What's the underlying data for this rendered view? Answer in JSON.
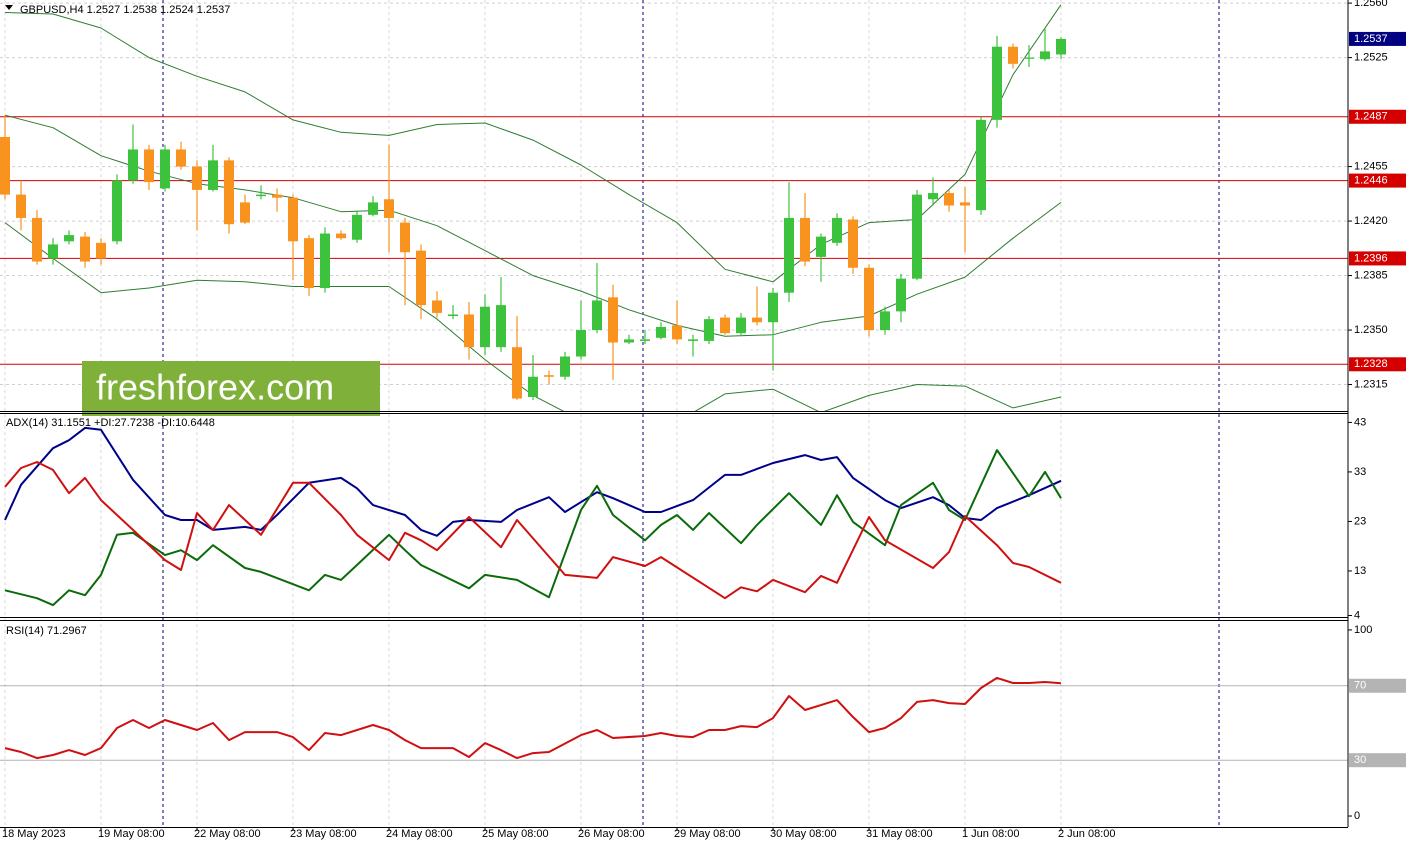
{
  "watermark": "freshforex.com",
  "chart_data": [
    {
      "type": "candlestick",
      "title": "GBPUSD,H4  1.2527 1.2538 1.2524 1.2537",
      "categories": [
        "18 May 2023",
        null,
        null,
        null,
        null,
        null,
        "19 May 08:00",
        null,
        null,
        null,
        null,
        null,
        "22 May 08:00",
        null,
        null,
        null,
        null,
        null,
        "23 May 08:00",
        null,
        null,
        null,
        null,
        null,
        "24 May 08:00",
        null,
        null,
        null,
        null,
        null,
        "25 May 08:00",
        null,
        null,
        null,
        null,
        null,
        "26 May 08:00",
        null,
        null,
        null,
        null,
        null,
        "29 May 08:00",
        null,
        null,
        null,
        null,
        null,
        "30 May 08:00",
        null,
        null,
        null,
        null,
        null,
        "31 May 08:00",
        null,
        null,
        null,
        null,
        null,
        "1 Jun 08:00",
        null,
        null,
        null,
        null,
        null,
        "2 Jun 08:00"
      ],
      "open": [
        1.2474,
        1.2437,
        1.2422,
        1.2396,
        1.2407,
        1.241,
        1.2406,
        1.2407,
        1.2446,
        1.2466,
        1.2441,
        1.2466,
        1.2455,
        1.244,
        1.2459,
        1.2432,
        1.2436,
        1.2437,
        1.2435,
        1.2409,
        1.2377,
        1.2412,
        1.2408,
        1.2424,
        1.2434,
        1.2419,
        1.2401,
        1.2369,
        1.2359,
        1.236,
        1.2339,
        1.2339,
        1.2339,
        1.2307,
        1.2321,
        1.232,
        1.2333,
        1.235,
        1.2371,
        1.2342,
        1.2343,
        1.2345,
        1.2353,
        1.2343,
        1.2343,
        1.2358,
        1.2348,
        1.2358,
        1.2355,
        1.2374,
        1.2422,
        1.2397,
        1.2406,
        1.2421,
        1.239,
        1.235,
        1.2362,
        1.2383,
        1.2434,
        1.2438,
        1.2432,
        1.2427,
        1.2485,
        1.2532,
        1.2525,
        1.2524,
        1.2527
      ],
      "high": [
        1.2488,
        1.2446,
        1.2427,
        1.2409,
        1.2414,
        1.2413,
        1.2409,
        1.245,
        1.2482,
        1.2469,
        1.2469,
        1.2471,
        1.2459,
        1.2469,
        1.2461,
        1.2437,
        1.2443,
        1.2441,
        1.2437,
        1.2411,
        1.2416,
        1.2414,
        1.2426,
        1.2436,
        1.2469,
        1.2422,
        1.2405,
        1.2375,
        1.2366,
        1.2368,
        1.2373,
        1.2384,
        1.2359,
        1.2334,
        1.2324,
        1.2336,
        1.2369,
        1.2393,
        1.2379,
        1.2347,
        1.235,
        1.2355,
        1.2369,
        1.2347,
        1.2359,
        1.236,
        1.2361,
        1.2378,
        1.2377,
        1.2445,
        1.2438,
        1.2412,
        1.2425,
        1.2423,
        1.2392,
        1.2365,
        1.2386,
        1.244,
        1.2448,
        1.244,
        1.2442,
        1.2487,
        1.2539,
        1.2534,
        1.2533,
        1.2544,
        1.2538
      ],
      "low": [
        1.2434,
        1.2414,
        1.2392,
        1.2392,
        1.2405,
        1.239,
        1.2392,
        1.2405,
        1.2444,
        1.244,
        1.2439,
        1.2453,
        1.2414,
        1.2439,
        1.2412,
        1.2418,
        1.2434,
        1.2426,
        1.2382,
        1.2372,
        1.2374,
        1.2408,
        1.2406,
        1.2423,
        1.24,
        1.2366,
        1.2357,
        1.2358,
        1.2357,
        1.2331,
        1.2334,
        1.2336,
        1.2305,
        1.2305,
        1.2315,
        1.2318,
        1.2331,
        1.2348,
        1.2318,
        1.2341,
        1.2341,
        1.2344,
        1.2341,
        1.2333,
        1.2341,
        1.2347,
        1.2346,
        1.2353,
        1.2324,
        1.2368,
        1.2391,
        1.2381,
        1.2404,
        1.2386,
        1.2346,
        1.2347,
        1.2355,
        1.2382,
        1.243,
        1.2426,
        1.24,
        1.2424,
        1.248,
        1.2518,
        1.2519,
        1.2523,
        1.2524
      ],
      "close": [
        1.2437,
        1.2422,
        1.2394,
        1.2405,
        1.2411,
        1.2394,
        1.2396,
        1.2446,
        1.2466,
        1.2445,
        1.2466,
        1.2455,
        1.244,
        1.2459,
        1.2418,
        1.2419,
        1.2437,
        1.2435,
        1.2407,
        1.2377,
        1.2412,
        1.2409,
        1.2424,
        1.2432,
        1.2422,
        1.24,
        1.2366,
        1.2361,
        1.236,
        1.2339,
        1.2365,
        1.2366,
        1.2306,
        1.232,
        1.232,
        1.2333,
        1.235,
        1.2369,
        1.2342,
        1.2344,
        1.2344,
        1.2352,
        1.2344,
        1.2344,
        1.2357,
        1.2348,
        1.2358,
        1.2355,
        1.2374,
        1.2422,
        1.2394,
        1.241,
        1.2422,
        1.239,
        1.235,
        1.2362,
        1.2383,
        1.2437,
        1.2438,
        1.243,
        1.243,
        1.2485,
        1.2532,
        1.2521,
        1.2525,
        1.2529,
        1.2537
      ],
      "up_color": "#3cc23c",
      "down_color": "#f7931e",
      "series": [
        {
          "color": "#2e7d32",
          "x": [
            0,
            3,
            6,
            9,
            12,
            15,
            18,
            21,
            24,
            27,
            30,
            33,
            36,
            39,
            42,
            45,
            48,
            51,
            54,
            57,
            60,
            63,
            66
          ],
          "values": [
            1.2554,
            1.2553,
            1.2544,
            1.2525,
            1.2513,
            1.2503,
            1.2485,
            1.2477,
            1.2475,
            1.2482,
            1.2483,
            1.2472,
            1.2456,
            1.2437,
            1.2419,
            1.2389,
            1.2381,
            1.2405,
            1.2419,
            1.2421,
            1.245,
            1.2514,
            1.2559
          ]
        },
        {
          "color": "#2e7d32",
          "x": [
            0,
            3,
            6,
            9,
            12,
            15,
            18,
            21,
            24,
            27,
            30,
            33,
            36,
            39,
            42,
            45,
            48,
            51,
            54,
            57,
            60,
            63,
            66
          ],
          "values": [
            1.2488,
            1.248,
            1.2462,
            1.2452,
            1.2444,
            1.244,
            1.2435,
            1.2426,
            1.2427,
            1.2417,
            1.2401,
            1.2385,
            1.2375,
            1.2363,
            1.2353,
            1.2346,
            1.2347,
            1.2355,
            1.2359,
            1.2373,
            1.2384,
            1.2409,
            1.2432
          ]
        },
        {
          "color": "#2e7d32",
          "x": [
            0,
            3,
            6,
            9,
            12,
            15,
            18,
            21,
            24,
            27,
            30,
            33,
            36,
            39,
            42,
            45,
            48,
            51,
            54,
            57,
            60,
            63,
            66
          ],
          "values": [
            1.2419,
            1.2396,
            1.2374,
            1.2377,
            1.2382,
            1.2381,
            1.2378,
            1.2378,
            1.2378,
            1.2357,
            1.2331,
            1.2308,
            1.2292,
            1.2285,
            1.2291,
            1.2309,
            1.2312,
            1.2297,
            1.2308,
            1.2315,
            1.2314,
            1.23,
            1.2307
          ]
        }
      ],
      "levels": [
        1.2487,
        1.2446,
        1.2396,
        1.2328
      ],
      "level_color": "#d40000",
      "last_price": 1.2537,
      "last_price_color": "#000080",
      "ylim": [
        1.2298,
        1.2562
      ],
      "yticks": [
        {
          "value": 1.256,
          "label": "1.2560"
        },
        1.2525,
        1.2455,
        {
          "value": 1.242,
          "label": "1.2420"
        },
        1.2385,
        {
          "value": 1.235,
          "label": "1.2350"
        },
        1.2315
      ],
      "grid": true
    },
    {
      "type": "line",
      "title": "ADX(14) 31.1551 +DI:27.7238 -DI:10.6448",
      "series": [
        {
          "color": "#00008b",
          "x": [
            0,
            1,
            3,
            4,
            5,
            6,
            8,
            10,
            11,
            12,
            13,
            15,
            16,
            17,
            19,
            21,
            22,
            23,
            25,
            26,
            27,
            28,
            29,
            31,
            32,
            34,
            35,
            37,
            38,
            40,
            41,
            43,
            45,
            46,
            48,
            50,
            51,
            52,
            53,
            55,
            56,
            58,
            59,
            60,
            61,
            62,
            64,
            66
          ],
          "values": [
            23.3,
            30.4,
            37.8,
            39.4,
            41.9,
            41.5,
            31.4,
            24.3,
            23.3,
            23.3,
            21.3,
            21.9,
            21.3,
            24.3,
            30.8,
            31.8,
            29.7,
            26.3,
            24.3,
            21.3,
            20.1,
            22.9,
            23.3,
            22.9,
            25.3,
            27.9,
            24.9,
            28.9,
            27.7,
            24.9,
            24.9,
            27.3,
            32.4,
            32.4,
            34.8,
            36.4,
            35.4,
            36.0,
            31.8,
            27.3,
            25.7,
            27.9,
            26.3,
            23.7,
            23.3,
            25.7,
            28.3,
            31.2
          ]
        },
        {
          "color": "#0a6b0a",
          "x": [
            0,
            2,
            3,
            4,
            5,
            6,
            7,
            8,
            10,
            11,
            12,
            13,
            15,
            16,
            19,
            20,
            21,
            22,
            24,
            25,
            26,
            29,
            30,
            32,
            34,
            36,
            37,
            38,
            40,
            41,
            42,
            43,
            44,
            46,
            47,
            49,
            51,
            52,
            53,
            55,
            56,
            58,
            59,
            60,
            62,
            64,
            65,
            66
          ],
          "values": [
            9.1,
            7.5,
            6.1,
            9.1,
            8.1,
            12.2,
            20.3,
            20.7,
            16.2,
            17.2,
            15.2,
            18.2,
            13.6,
            12.8,
            9.1,
            12.2,
            11.2,
            14.2,
            20.3,
            17.2,
            14.2,
            9.5,
            12.2,
            11.2,
            7.7,
            25.3,
            30.2,
            24.3,
            19.2,
            22.3,
            24.3,
            21.3,
            24.7,
            18.6,
            22.3,
            28.7,
            22.3,
            28.3,
            22.9,
            18.2,
            26.3,
            30.8,
            25.3,
            23.3,
            37.4,
            28.1,
            33.0,
            27.7
          ]
        },
        {
          "color": "#d01010",
          "x": [
            0,
            1,
            2,
            3,
            4,
            5,
            6,
            8,
            10,
            11,
            12,
            13,
            14,
            16,
            18,
            19,
            21,
            22,
            24,
            25,
            26,
            27,
            29,
            31,
            32,
            35,
            37,
            38,
            40,
            41,
            45,
            46,
            47,
            48,
            50,
            51,
            52,
            54,
            55,
            58,
            59,
            60,
            62,
            63,
            64,
            66
          ],
          "values": [
            30.0,
            33.8,
            35.0,
            33.4,
            28.7,
            31.8,
            27.3,
            21.3,
            15.2,
            13.2,
            24.7,
            21.3,
            26.3,
            20.3,
            30.8,
            30.8,
            24.3,
            20.3,
            15.2,
            20.7,
            19.2,
            17.2,
            23.9,
            17.8,
            23.3,
            12.2,
            11.6,
            15.8,
            14.0,
            15.8,
            7.5,
            9.7,
            8.9,
            11.2,
            8.7,
            12.0,
            10.6,
            23.9,
            19.2,
            13.6,
            16.8,
            24.1,
            18.2,
            14.6,
            13.8,
            10.6
          ]
        }
      ],
      "ylim": [
        3.7,
        44.9
      ],
      "yticks": [
        4,
        13,
        23,
        33,
        43
      ]
    },
    {
      "type": "line",
      "title": "RSI(14) 71.2967",
      "series": [
        {
          "color": "#d01010",
          "x": [
            0,
            1,
            2,
            3,
            4,
            5,
            6,
            7,
            8,
            9,
            10,
            11,
            12,
            13,
            14,
            15,
            17,
            18,
            19,
            20,
            21,
            23,
            24,
            25,
            26,
            28,
            29,
            30,
            31,
            32,
            33,
            34,
            36,
            37,
            38,
            40,
            41,
            42,
            43,
            44,
            45,
            46,
            47,
            48,
            49,
            50,
            51,
            52,
            53,
            54,
            55,
            56,
            57,
            58,
            59,
            60,
            61,
            62,
            63,
            64,
            65,
            66
          ],
          "values": [
            36.5,
            34.4,
            31.1,
            32.8,
            35.4,
            32.8,
            36.5,
            47.3,
            51.6,
            47.3,
            51.6,
            48.9,
            46.2,
            50.0,
            40.8,
            45.1,
            45.1,
            42.4,
            35.4,
            44.6,
            43.5,
            48.9,
            46.2,
            40.8,
            36.5,
            36.5,
            31.7,
            39.2,
            35.4,
            31.1,
            33.8,
            34.4,
            43.5,
            46.2,
            41.9,
            43.0,
            44.6,
            43.0,
            42.4,
            46.2,
            46.2,
            48.3,
            47.8,
            52.6,
            64.5,
            57.0,
            59.6,
            62.3,
            53.2,
            45.1,
            47.3,
            52.6,
            61.3,
            62.3,
            60.7,
            60.2,
            68.8,
            74.2,
            71.5,
            71.5,
            72.0,
            71.3
          ]
        }
      ],
      "levels": [
        70,
        30
      ],
      "level_color": "#b4b4b4",
      "ylim": [
        -5.9,
        104.8
      ],
      "yticks": [
        0,
        100
      ]
    }
  ]
}
